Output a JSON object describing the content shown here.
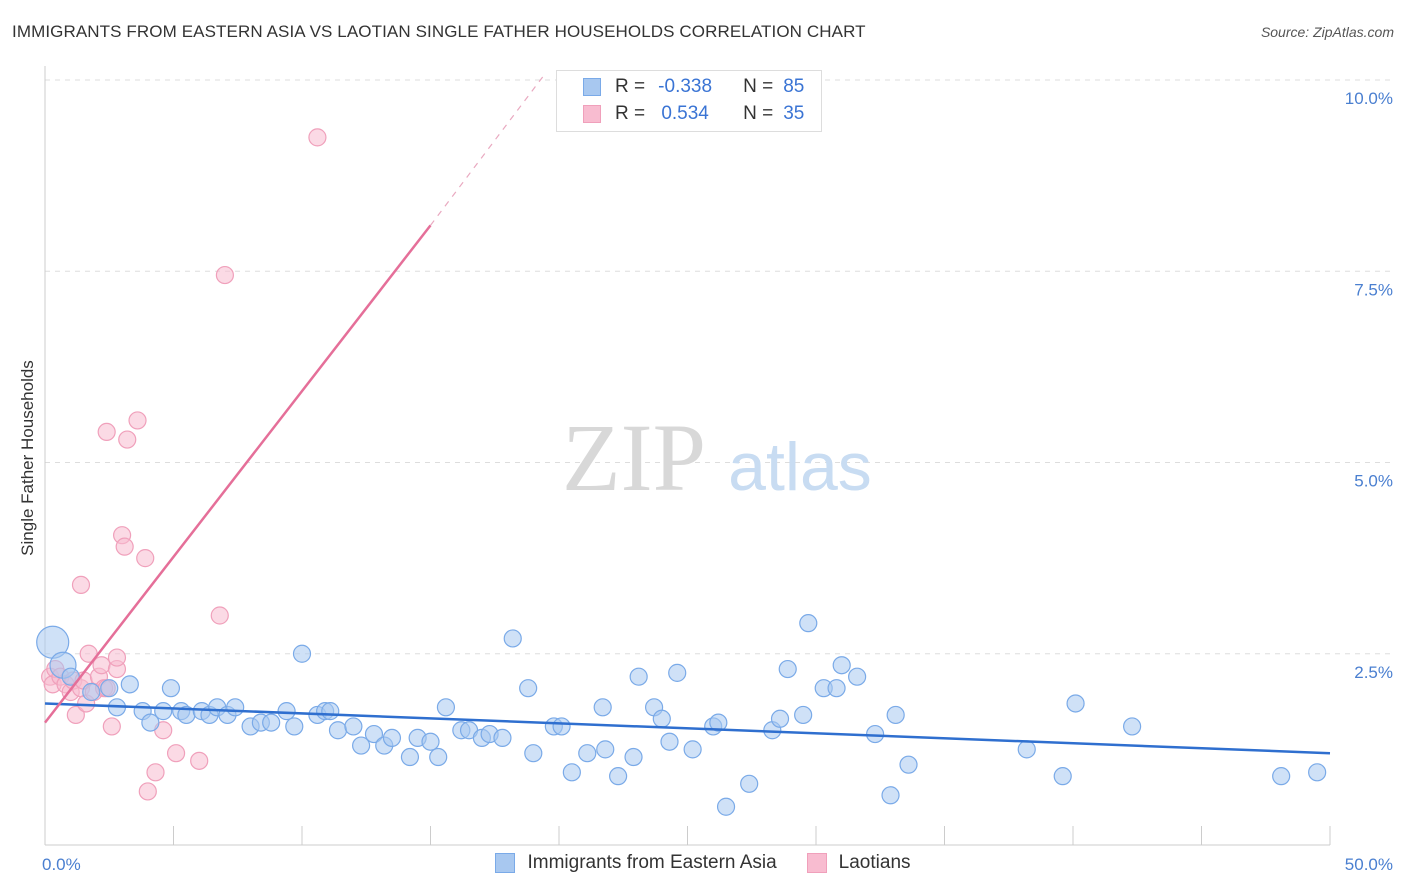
{
  "title": "IMMIGRANTS FROM EASTERN ASIA VS LAOTIAN SINGLE FATHER HOUSEHOLDS CORRELATION CHART",
  "source": "Source: ZipAtlas.com",
  "colors": {
    "blue_fill": "#a8c8f0",
    "blue_stroke": "#7aaae8",
    "blue_line": "#2f6fcf",
    "pink_fill": "#f8bcd0",
    "pink_stroke": "#f0a0bb",
    "pink_line": "#e56f99",
    "tick_text": "#4a7fd0",
    "grid": "#dddddd"
  },
  "legend": {
    "r_label": "R =",
    "n_label": "N =",
    "blue": {
      "r": "-0.338",
      "n": "85"
    },
    "pink": {
      "r": "0.534",
      "n": "35"
    }
  },
  "watermark": {
    "zip": "ZIP",
    "atlas": "atlas"
  },
  "chart_data": {
    "type": "scatter",
    "title": "IMMIGRANTS FROM EASTERN ASIA VS LAOTIAN SINGLE FATHER HOUSEHOLDS CORRELATION CHART",
    "xlabel": "",
    "ylabel": "Single Father Households",
    "xlim": [
      0,
      50
    ],
    "ylim": [
      0,
      10
    ],
    "x_tick_labels": [
      "0.0%",
      "50.0%"
    ],
    "y_ticks": [
      2.5,
      5.0,
      7.5,
      10.0
    ],
    "y_tick_labels": [
      "2.5%",
      "5.0%",
      "7.5%",
      "10.0%"
    ],
    "grid": true,
    "legend_position": "top-center",
    "series": [
      {
        "name": "Immigrants from Eastern Asia",
        "color": "#a8c8f0",
        "trend": {
          "x": [
            0,
            50
          ],
          "y": [
            1.85,
            1.2
          ]
        },
        "points": [
          {
            "x": 0.3,
            "y": 2.65,
            "s": 3
          },
          {
            "x": 0.7,
            "y": 2.35,
            "s": 2
          },
          {
            "x": 1.0,
            "y": 2.2,
            "s": 1
          },
          {
            "x": 1.8,
            "y": 2.0,
            "s": 1
          },
          {
            "x": 2.5,
            "y": 2.05,
            "s": 1
          },
          {
            "x": 2.8,
            "y": 1.8,
            "s": 1
          },
          {
            "x": 3.3,
            "y": 2.1,
            "s": 1
          },
          {
            "x": 3.8,
            "y": 1.75,
            "s": 1
          },
          {
            "x": 4.1,
            "y": 1.6,
            "s": 1
          },
          {
            "x": 4.6,
            "y": 1.75,
            "s": 1
          },
          {
            "x": 4.9,
            "y": 2.05,
            "s": 1
          },
          {
            "x": 5.3,
            "y": 1.75,
            "s": 1
          },
          {
            "x": 5.5,
            "y": 1.7,
            "s": 1
          },
          {
            "x": 6.1,
            "y": 1.75,
            "s": 1
          },
          {
            "x": 6.4,
            "y": 1.7,
            "s": 1
          },
          {
            "x": 6.7,
            "y": 1.8,
            "s": 1
          },
          {
            "x": 7.1,
            "y": 1.7,
            "s": 1
          },
          {
            "x": 7.4,
            "y": 1.8,
            "s": 1
          },
          {
            "x": 8.0,
            "y": 1.55,
            "s": 1
          },
          {
            "x": 8.4,
            "y": 1.6,
            "s": 1
          },
          {
            "x": 8.8,
            "y": 1.6,
            "s": 1
          },
          {
            "x": 9.4,
            "y": 1.75,
            "s": 1
          },
          {
            "x": 9.7,
            "y": 1.55,
            "s": 1
          },
          {
            "x": 10.0,
            "y": 2.5,
            "s": 1
          },
          {
            "x": 10.6,
            "y": 1.7,
            "s": 1
          },
          {
            "x": 10.9,
            "y": 1.75,
            "s": 1
          },
          {
            "x": 11.1,
            "y": 1.75,
            "s": 1
          },
          {
            "x": 11.4,
            "y": 1.5,
            "s": 1
          },
          {
            "x": 12.0,
            "y": 1.55,
            "s": 1
          },
          {
            "x": 12.3,
            "y": 1.3,
            "s": 1
          },
          {
            "x": 12.8,
            "y": 1.45,
            "s": 1
          },
          {
            "x": 13.2,
            "y": 1.3,
            "s": 1
          },
          {
            "x": 13.5,
            "y": 1.4,
            "s": 1
          },
          {
            "x": 14.2,
            "y": 1.15,
            "s": 1
          },
          {
            "x": 14.5,
            "y": 1.4,
            "s": 1
          },
          {
            "x": 15.0,
            "y": 1.35,
            "s": 1
          },
          {
            "x": 15.3,
            "y": 1.15,
            "s": 1
          },
          {
            "x": 15.6,
            "y": 1.8,
            "s": 1
          },
          {
            "x": 16.2,
            "y": 1.5,
            "s": 1
          },
          {
            "x": 16.5,
            "y": 1.5,
            "s": 1
          },
          {
            "x": 17.0,
            "y": 1.4,
            "s": 1
          },
          {
            "x": 17.3,
            "y": 1.45,
            "s": 1
          },
          {
            "x": 17.8,
            "y": 1.4,
            "s": 1
          },
          {
            "x": 18.2,
            "y": 2.7,
            "s": 1
          },
          {
            "x": 18.8,
            "y": 2.05,
            "s": 1
          },
          {
            "x": 19.0,
            "y": 1.2,
            "s": 1
          },
          {
            "x": 19.8,
            "y": 1.55,
            "s": 1
          },
          {
            "x": 20.1,
            "y": 1.55,
            "s": 1
          },
          {
            "x": 20.5,
            "y": 0.95,
            "s": 1
          },
          {
            "x": 21.1,
            "y": 1.2,
            "s": 1
          },
          {
            "x": 21.7,
            "y": 1.8,
            "s": 1
          },
          {
            "x": 21.8,
            "y": 1.25,
            "s": 1
          },
          {
            "x": 22.3,
            "y": 0.9,
            "s": 1
          },
          {
            "x": 22.9,
            "y": 1.15,
            "s": 1
          },
          {
            "x": 23.1,
            "y": 2.2,
            "s": 1
          },
          {
            "x": 23.7,
            "y": 1.8,
            "s": 1
          },
          {
            "x": 24.0,
            "y": 1.65,
            "s": 1
          },
          {
            "x": 24.3,
            "y": 1.35,
            "s": 1
          },
          {
            "x": 24.6,
            "y": 2.25,
            "s": 1
          },
          {
            "x": 25.2,
            "y": 1.25,
            "s": 1
          },
          {
            "x": 26.0,
            "y": 1.55,
            "s": 1
          },
          {
            "x": 26.2,
            "y": 1.6,
            "s": 1
          },
          {
            "x": 26.5,
            "y": 0.5,
            "s": 1
          },
          {
            "x": 27.4,
            "y": 0.8,
            "s": 1
          },
          {
            "x": 28.3,
            "y": 1.5,
            "s": 1
          },
          {
            "x": 28.6,
            "y": 1.65,
            "s": 1
          },
          {
            "x": 28.9,
            "y": 2.3,
            "s": 1
          },
          {
            "x": 29.5,
            "y": 1.7,
            "s": 1
          },
          {
            "x": 29.7,
            "y": 2.9,
            "s": 1
          },
          {
            "x": 30.3,
            "y": 2.05,
            "s": 1
          },
          {
            "x": 30.8,
            "y": 2.05,
            "s": 1
          },
          {
            "x": 31.0,
            "y": 2.35,
            "s": 1
          },
          {
            "x": 31.6,
            "y": 2.2,
            "s": 1
          },
          {
            "x": 32.3,
            "y": 1.45,
            "s": 1
          },
          {
            "x": 32.9,
            "y": 0.65,
            "s": 1
          },
          {
            "x": 33.1,
            "y": 1.7,
            "s": 1
          },
          {
            "x": 33.6,
            "y": 1.05,
            "s": 1
          },
          {
            "x": 38.2,
            "y": 1.25,
            "s": 1
          },
          {
            "x": 39.6,
            "y": 0.9,
            "s": 1
          },
          {
            "x": 40.1,
            "y": 1.85,
            "s": 1
          },
          {
            "x": 42.3,
            "y": 1.55,
            "s": 1
          },
          {
            "x": 48.1,
            "y": 0.9,
            "s": 1
          },
          {
            "x": 49.5,
            "y": 0.95,
            "s": 1
          }
        ]
      },
      {
        "name": "Laotians",
        "color": "#f8bcd0",
        "trend": {
          "x": [
            0,
            15
          ],
          "y": [
            1.6,
            8.1
          ]
        },
        "trend_dashed": {
          "x": [
            15,
            19.5
          ],
          "y": [
            8.1,
            10.1
          ]
        },
        "points": [
          {
            "x": 0.2,
            "y": 2.2,
            "s": 1
          },
          {
            "x": 0.3,
            "y": 2.1,
            "s": 1
          },
          {
            "x": 0.4,
            "y": 2.3,
            "s": 1
          },
          {
            "x": 0.6,
            "y": 2.2,
            "s": 1
          },
          {
            "x": 0.8,
            "y": 2.1,
            "s": 1
          },
          {
            "x": 1.0,
            "y": 2.0,
            "s": 1
          },
          {
            "x": 1.1,
            "y": 2.15,
            "s": 1
          },
          {
            "x": 1.2,
            "y": 1.7,
            "s": 1
          },
          {
            "x": 1.4,
            "y": 2.05,
            "s": 1
          },
          {
            "x": 1.5,
            "y": 2.15,
            "s": 1
          },
          {
            "x": 1.4,
            "y": 3.4,
            "s": 1
          },
          {
            "x": 1.6,
            "y": 1.85,
            "s": 1
          },
          {
            "x": 1.7,
            "y": 2.5,
            "s": 1
          },
          {
            "x": 1.9,
            "y": 2.0,
            "s": 1
          },
          {
            "x": 2.1,
            "y": 2.2,
            "s": 1
          },
          {
            "x": 2.2,
            "y": 2.35,
            "s": 1
          },
          {
            "x": 2.3,
            "y": 2.05,
            "s": 1
          },
          {
            "x": 2.4,
            "y": 2.05,
            "s": 1
          },
          {
            "x": 2.6,
            "y": 1.55,
            "s": 1
          },
          {
            "x": 2.8,
            "y": 2.3,
            "s": 1
          },
          {
            "x": 2.8,
            "y": 2.45,
            "s": 1
          },
          {
            "x": 3.0,
            "y": 4.05,
            "s": 1
          },
          {
            "x": 3.1,
            "y": 3.9,
            "s": 1
          },
          {
            "x": 3.2,
            "y": 5.3,
            "s": 1
          },
          {
            "x": 2.4,
            "y": 5.4,
            "s": 1
          },
          {
            "x": 3.6,
            "y": 5.55,
            "s": 1
          },
          {
            "x": 3.9,
            "y": 3.75,
            "s": 1
          },
          {
            "x": 4.0,
            "y": 0.7,
            "s": 1
          },
          {
            "x": 4.3,
            "y": 0.95,
            "s": 1
          },
          {
            "x": 4.6,
            "y": 1.5,
            "s": 1
          },
          {
            "x": 5.1,
            "y": 1.2,
            "s": 1
          },
          {
            "x": 6.0,
            "y": 1.1,
            "s": 1
          },
          {
            "x": 6.8,
            "y": 3.0,
            "s": 1
          },
          {
            "x": 7.0,
            "y": 7.45,
            "s": 1
          },
          {
            "x": 10.6,
            "y": 9.25,
            "s": 1
          }
        ]
      }
    ]
  }
}
